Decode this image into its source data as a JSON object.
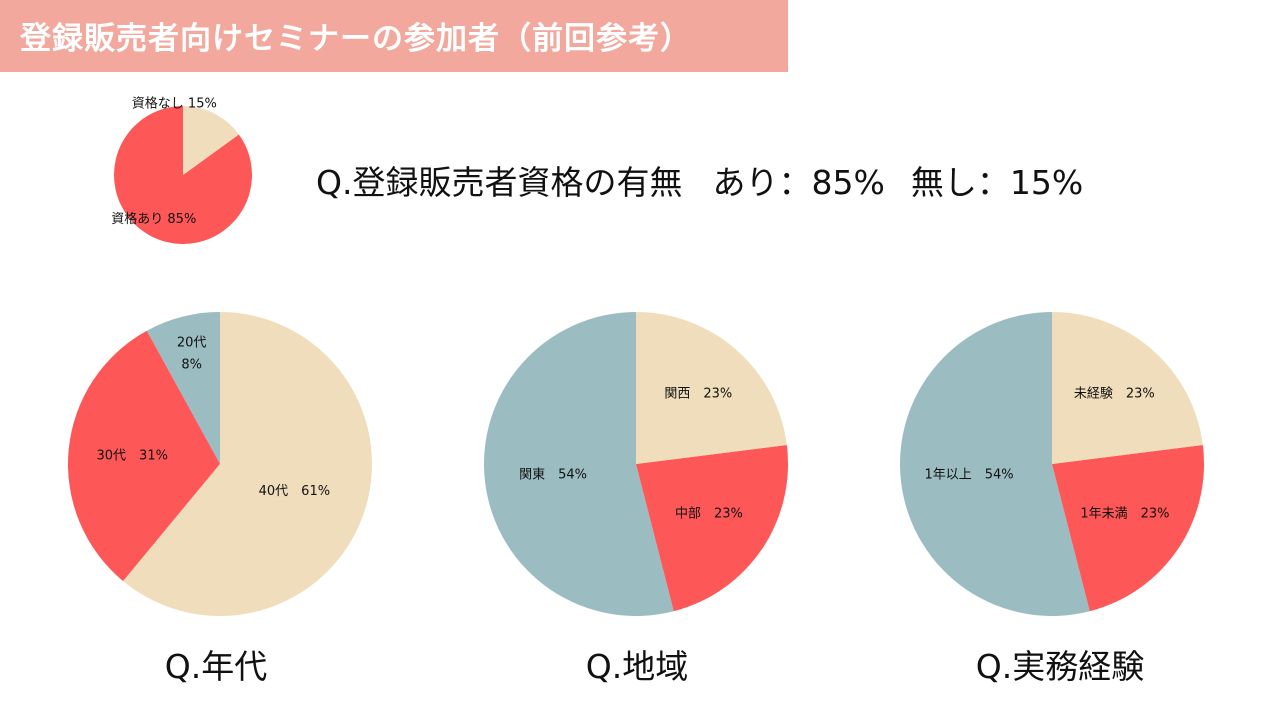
{
  "header": {
    "title": "登録販売者向けセミナーの参加者（前回参考）"
  },
  "summary": {
    "question": "Q.登録販売者資格の有無",
    "yes": "あり：85%",
    "no": "無し：15%"
  },
  "colors": {
    "red": "#fe5757",
    "beige": "#f0ddbb",
    "teal": "#9bbcc1",
    "header": "#f2a89c"
  },
  "chart_data": [
    {
      "type": "pie",
      "title": "",
      "slices": [
        {
          "label": "資格あり 85%",
          "value": 85,
          "color": "#fe5757"
        },
        {
          "label": "資格なし 15%",
          "value": 15,
          "color": "#f0ddbb"
        }
      ]
    },
    {
      "type": "pie",
      "title": "Q.年代",
      "slices": [
        {
          "label": "20代\n8%",
          "value": 8,
          "color": "#9bbcc1"
        },
        {
          "label": "30代　31%",
          "value": 31,
          "color": "#fe5757"
        },
        {
          "label": "40代　61%",
          "value": 61,
          "color": "#f0ddbb"
        }
      ]
    },
    {
      "type": "pie",
      "title": "Q.地域",
      "slices": [
        {
          "label": "関東　54%",
          "value": 54,
          "color": "#9bbcc1"
        },
        {
          "label": "中部　23%",
          "value": 23,
          "color": "#fe5757"
        },
        {
          "label": "関西　23%",
          "value": 23,
          "color": "#f0ddbb"
        }
      ]
    },
    {
      "type": "pie",
      "title": "Q.実務経験",
      "slices": [
        {
          "label": "1年以上　54%",
          "value": 54,
          "color": "#9bbcc1"
        },
        {
          "label": "1年未満　23%",
          "value": 23,
          "color": "#fe5757"
        },
        {
          "label": "未経験　23%",
          "value": 23,
          "color": "#f0ddbb"
        }
      ]
    }
  ]
}
